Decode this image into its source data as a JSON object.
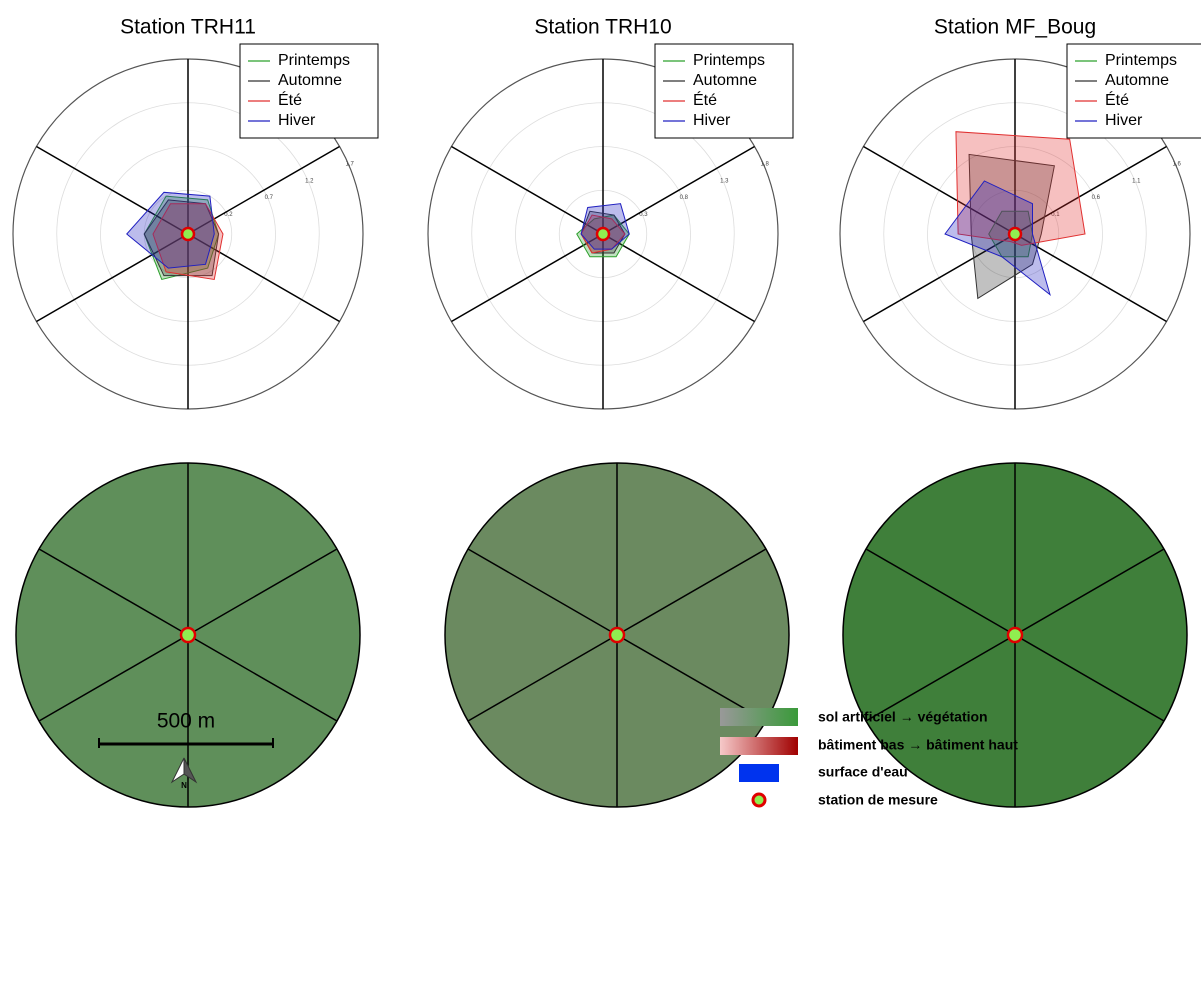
{
  "chart_data": [
    {
      "type": "radar",
      "title": "Station TRH11",
      "categories": [
        null,
        null,
        null,
        null,
        null,
        null
      ],
      "ylim": [
        -0.3,
        1.7
      ],
      "yticks": [
        0.2,
        0.7,
        1.2,
        1.7
      ],
      "series": [
        {
          "name": "Printemps",
          "color": "#2ca02c",
          "values": [
            0.15,
            0.05,
            0.15,
            0.3,
            0.2,
            0.2
          ]
        },
        {
          "name": "Automne",
          "color": "#333333",
          "values": [
            0.1,
            0.05,
            0.25,
            0.25,
            0.2,
            0.15
          ]
        },
        {
          "name": "Été",
          "color": "#e03030",
          "values": [
            0.1,
            0.1,
            0.3,
            0.2,
            0.1,
            0.1
          ]
        },
        {
          "name": "Hiver",
          "color": "#2020c0",
          "values": [
            0.2,
            0.0,
            0.1,
            0.15,
            0.4,
            0.25
          ]
        }
      ]
    },
    {
      "type": "radar",
      "title": "Station TRH10",
      "categories": [
        null,
        null,
        null,
        null,
        null,
        null
      ],
      "ylim": [
        -0.2,
        1.8
      ],
      "yticks": [
        0.3,
        0.8,
        1.3,
        1.8
      ],
      "series": [
        {
          "name": "Printemps",
          "color": "#2ca02c",
          "values": [
            0.05,
            0.1,
            0.1,
            0.1,
            0.1,
            0.0
          ]
        },
        {
          "name": "Automne",
          "color": "#333333",
          "values": [
            0.05,
            0.05,
            0.05,
            0.05,
            0.05,
            0.1
          ]
        },
        {
          "name": "Été",
          "color": "#e03030",
          "values": [
            0.0,
            0.05,
            0.0,
            0.05,
            0.05,
            0.05
          ]
        },
        {
          "name": "Hiver",
          "color": "#2020c0",
          "values": [
            0.2,
            0.1,
            0.0,
            0.0,
            0.05,
            0.15
          ]
        }
      ]
    },
    {
      "type": "radar",
      "title": "Station MF_Boug",
      "categories": [
        null,
        null,
        null,
        null,
        null,
        null
      ],
      "ylim": [
        -0.4,
        1.6
      ],
      "yticks": [
        0.1,
        0.6,
        1.1,
        1.6
      ],
      "series": [
        {
          "name": "Printemps",
          "color": "#2ca02c",
          "values": [
            -0.1,
            -0.2,
            -0.1,
            -0.1,
            -0.1,
            -0.1
          ]
        },
        {
          "name": "Automne",
          "color": "#333333",
          "values": [
            0.5,
            -0.1,
            0.0,
            0.45,
            0.1,
            0.65
          ]
        },
        {
          "name": "Été",
          "color": "#e03030",
          "values": [
            0.85,
            0.4,
            -0.25,
            -0.3,
            0.25,
            0.95
          ]
        },
        {
          "name": "Hiver",
          "color": "#2020c0",
          "values": [
            0.0,
            -0.2,
            0.4,
            -0.1,
            0.4,
            0.3
          ]
        }
      ]
    }
  ],
  "scale_bar": {
    "label": "500 m"
  },
  "north_arrow": {
    "label": "N"
  },
  "map_legend": [
    "sol artificiel → végétation",
    "bâtiment bas → bâtiment haut",
    "surface d'eau",
    "station de mesure"
  ]
}
